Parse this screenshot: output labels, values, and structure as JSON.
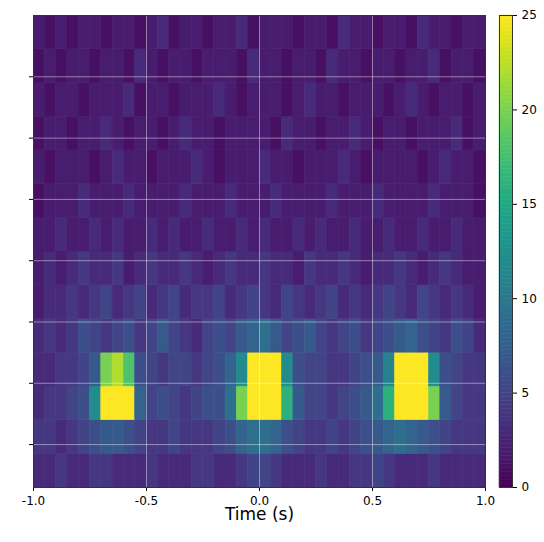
{
  "chart_data": {
    "type": "heatmap",
    "xlabel": "Time (s)",
    "color": "viridis",
    "grid": true,
    "tick_labels": "x",
    "xlim": [
      -1,
      1
    ],
    "xticks": [
      {
        "value": -1,
        "label": "-1.0"
      },
      {
        "value": -0.5,
        "label": "-0.5"
      },
      {
        "value": 0,
        "label": "0.0"
      },
      {
        "value": 0.5,
        "label": "0.5"
      },
      {
        "value": 1,
        "label": "1.0"
      }
    ],
    "ylim": [
      0,
      7.7
    ],
    "yticks": [
      0.7,
      1.7,
      2.7,
      3.7,
      4.7,
      5.7,
      6.7
    ],
    "x_edges": [
      -1,
      -0.95,
      -0.9,
      -0.85,
      -0.8,
      -0.75,
      -0.7,
      -0.65,
      -0.6,
      -0.55,
      -0.5,
      -0.45,
      -0.4,
      -0.35,
      -0.3,
      -0.25,
      -0.2,
      -0.15,
      -0.1,
      -0.05,
      0,
      0.05,
      0.1,
      0.15,
      0.2,
      0.25,
      0.3,
      0.35,
      0.4,
      0.45,
      0.5,
      0.55,
      0.6,
      0.65,
      0.7,
      0.75,
      0.8,
      0.85,
      0.9,
      0.95,
      1
    ],
    "y_edges": [
      0,
      0.55,
      1.1,
      1.65,
      2.2,
      2.75,
      3.3,
      3.85,
      4.4,
      4.95,
      5.5,
      6.05,
      6.6,
      7.15,
      7.7
    ],
    "z": [
      [
        3,
        3,
        4,
        3,
        3,
        4,
        4,
        3,
        3,
        3,
        4,
        3,
        3,
        3,
        4,
        4,
        3,
        3,
        4,
        5,
        5,
        4,
        3,
        3,
        3,
        4,
        3,
        3,
        4,
        4,
        5,
        4,
        3,
        3,
        3,
        4,
        3,
        3,
        3,
        3
      ],
      [
        4,
        4,
        3,
        4,
        5,
        6,
        7,
        7,
        6,
        5,
        4,
        4,
        5,
        4,
        4,
        4,
        5,
        6,
        8,
        9,
        9,
        8,
        6,
        5,
        4,
        4,
        5,
        4,
        5,
        6,
        7,
        8,
        9,
        8,
        7,
        6,
        5,
        4,
        4,
        4
      ],
      [
        3,
        4,
        4,
        5,
        6,
        12,
        27,
        28,
        26,
        8,
        5,
        6,
        5,
        4,
        5,
        6,
        6,
        9,
        20,
        28,
        29,
        28,
        16,
        7,
        5,
        5,
        4,
        5,
        6,
        7,
        9,
        16,
        28,
        29,
        27,
        20,
        7,
        5,
        4,
        4
      ],
      [
        3,
        3,
        4,
        4,
        5,
        7,
        20,
        22,
        18,
        6,
        5,
        4,
        5,
        5,
        4,
        5,
        6,
        8,
        12,
        27,
        30,
        26,
        12,
        6,
        5,
        5,
        4,
        4,
        5,
        6,
        7,
        11,
        26,
        30,
        28,
        12,
        6,
        5,
        4,
        4
      ],
      [
        3,
        4,
        3,
        4,
        6,
        5,
        4,
        5,
        6,
        4,
        5,
        7,
        5,
        4,
        3,
        5,
        6,
        5,
        7,
        8,
        9,
        7,
        5,
        6,
        7,
        5,
        4,
        5,
        6,
        4,
        5,
        6,
        7,
        8,
        6,
        5,
        4,
        6,
        5,
        3
      ],
      [
        2,
        3,
        3,
        4,
        3,
        4,
        5,
        3,
        4,
        5,
        3,
        4,
        5,
        3,
        4,
        4,
        5,
        3,
        4,
        5,
        4,
        3,
        5,
        4,
        3,
        4,
        5,
        3,
        4,
        3,
        4,
        5,
        4,
        3,
        5,
        4,
        3,
        4,
        3,
        2
      ],
      [
        2,
        3,
        2,
        3,
        4,
        3,
        3,
        4,
        2,
        3,
        4,
        3,
        3,
        4,
        3,
        2,
        3,
        4,
        3,
        3,
        4,
        3,
        3,
        2,
        4,
        3,
        3,
        4,
        3,
        2,
        3,
        3,
        4,
        3,
        2,
        3,
        4,
        3,
        2,
        2
      ],
      [
        2,
        2,
        3,
        2,
        2,
        3,
        2,
        3,
        2,
        2,
        3,
        2,
        3,
        2,
        2,
        3,
        2,
        2,
        3,
        2,
        3,
        2,
        2,
        3,
        2,
        3,
        2,
        2,
        3,
        2,
        2,
        3,
        2,
        2,
        3,
        2,
        2,
        3,
        2,
        2
      ],
      [
        1,
        2,
        2,
        2,
        3,
        2,
        2,
        2,
        3,
        2,
        2,
        2,
        2,
        3,
        2,
        2,
        2,
        3,
        2,
        2,
        2,
        3,
        2,
        2,
        2,
        2,
        3,
        2,
        2,
        2,
        3,
        2,
        2,
        2,
        2,
        3,
        2,
        2,
        2,
        1
      ],
      [
        2,
        1,
        2,
        2,
        2,
        1,
        2,
        3,
        2,
        2,
        1,
        2,
        2,
        2,
        3,
        2,
        1,
        2,
        2,
        2,
        3,
        2,
        2,
        1,
        2,
        2,
        2,
        3,
        2,
        1,
        2,
        2,
        2,
        2,
        1,
        2,
        3,
        2,
        2,
        1
      ],
      [
        1,
        2,
        2,
        1,
        2,
        2,
        3,
        2,
        1,
        2,
        2,
        1,
        2,
        3,
        2,
        2,
        1,
        2,
        2,
        2,
        2,
        1,
        3,
        2,
        2,
        1,
        2,
        2,
        3,
        2,
        1,
        2,
        2,
        1,
        2,
        2,
        2,
        3,
        1,
        2
      ],
      [
        2,
        1,
        2,
        2,
        1,
        2,
        2,
        2,
        3,
        1,
        2,
        2,
        1,
        2,
        2,
        2,
        3,
        2,
        1,
        2,
        2,
        2,
        1,
        2,
        3,
        2,
        2,
        1,
        2,
        2,
        2,
        1,
        2,
        3,
        2,
        1,
        2,
        2,
        1,
        2
      ],
      [
        1,
        2,
        1,
        2,
        2,
        1,
        2,
        2,
        1,
        3,
        2,
        1,
        2,
        2,
        1,
        2,
        2,
        2,
        1,
        3,
        2,
        2,
        1,
        2,
        2,
        1,
        3,
        2,
        2,
        1,
        2,
        2,
        1,
        2,
        2,
        3,
        1,
        2,
        2,
        1
      ],
      [
        2,
        1,
        2,
        1,
        2,
        2,
        1,
        2,
        2,
        1,
        2,
        3,
        1,
        2,
        2,
        1,
        2,
        2,
        3,
        1,
        2,
        2,
        2,
        1,
        2,
        2,
        1,
        3,
        2,
        2,
        1,
        2,
        2,
        1,
        3,
        2,
        2,
        1,
        2,
        2
      ]
    ],
    "colorbar": {
      "range": [
        0,
        25
      ],
      "ticks": [
        0,
        5,
        10,
        15,
        20,
        25
      ]
    }
  }
}
